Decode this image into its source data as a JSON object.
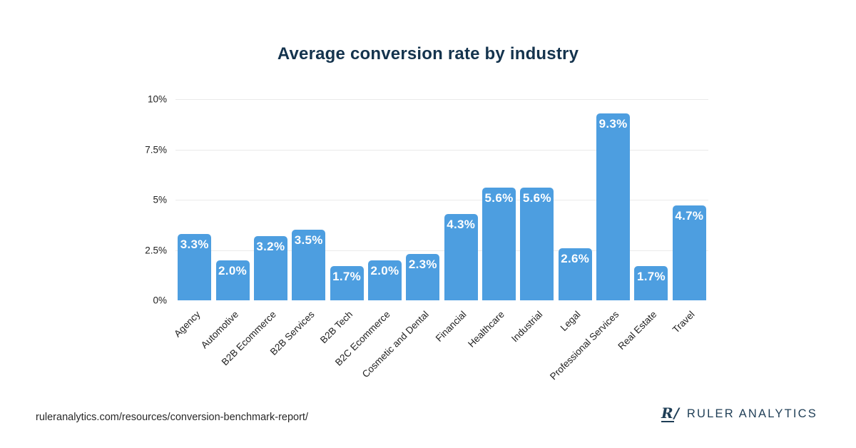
{
  "chart_data": {
    "type": "bar",
    "title": "Average conversion rate by industry",
    "categories": [
      "Agency",
      "Automotive",
      "B2B Ecommerce",
      "B2B Services",
      "B2B Tech",
      "B2C Ecommerce",
      "Cosmetic and Dental",
      "Financial",
      "Healthcare",
      "Industrial",
      "Legal",
      "Professional Services",
      "Real Estate",
      "Travel"
    ],
    "values": [
      3.3,
      2.0,
      3.2,
      3.5,
      1.7,
      2.0,
      2.3,
      4.3,
      5.6,
      5.6,
      2.6,
      9.3,
      1.7,
      4.7
    ],
    "value_labels": [
      "3.3%",
      "2.0%",
      "3.2%",
      "3.5%",
      "1.7%",
      "2.0%",
      "2.3%",
      "4.3%",
      "5.6%",
      "5.6%",
      "2.6%",
      "9.3%",
      "1.7%",
      "4.7%"
    ],
    "xlabel": "",
    "ylabel": "",
    "ylim": [
      0,
      10
    ],
    "yticks": [
      0,
      2.5,
      5,
      7.5,
      10
    ],
    "ytick_labels": [
      "0%",
      "2.5%",
      "5%",
      "7.5%",
      "10%"
    ],
    "grid": true,
    "legend": false,
    "bar_color": "#4D9EE0",
    "value_label_color": "#FFFFFF",
    "x_tick_rotation_deg": 45
  },
  "footer": {
    "source_url": "ruleranalytics.com/resources/conversion-benchmark-report/",
    "brand": "RULER ANALYTICS",
    "logo_mark_letter": "R",
    "logo_mark_slash": "/"
  },
  "colors": {
    "bar": "#4D9EE0",
    "title_text": "#14334D",
    "axis_text": "#222222",
    "gridline": "#EAEAEA",
    "brand_navy": "#1F3E56",
    "background": "#FFFFFF"
  }
}
